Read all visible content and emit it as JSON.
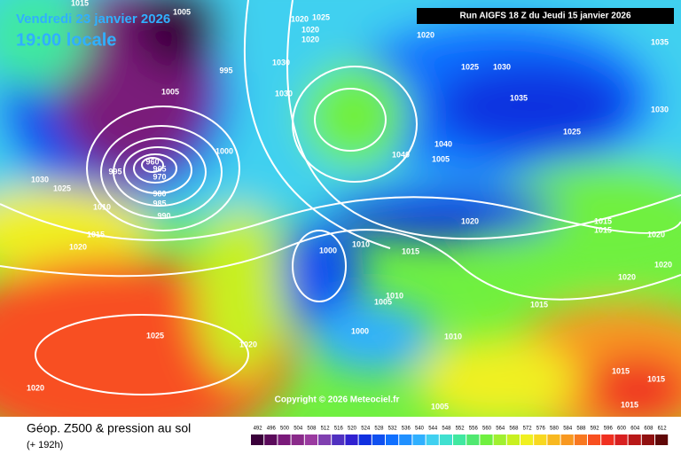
{
  "header": {
    "valid_date": "Vendredi 23 janvier 2026",
    "local_time": "19:00 locale",
    "run": "Run AIGFS 18 Z du Jeudi 15 janvier 2026"
  },
  "isobar_labels": [
    1015,
    1005,
    1025,
    1020,
    1020,
    1020,
    1030,
    995,
    1005,
    1030,
    1020,
    1025,
    1030,
    1035,
    1030,
    1035,
    1025,
    1040,
    1040,
    1000,
    970,
    965,
    960,
    995,
    980,
    985,
    990,
    1010,
    1030,
    1025,
    1015,
    1020,
    1005,
    1020,
    1015,
    1015,
    1020,
    1010,
    1000,
    1015,
    1020,
    1020,
    1010,
    1005,
    1015,
    1000,
    1010,
    1025,
    1020,
    1020,
    1015,
    1015,
    1005,
    1015
  ],
  "copyright": "Copyright © 2026 Meteociel.fr",
  "legend": {
    "title": "Géop. Z500 & pression au sol",
    "lead": "(+ 192h)",
    "scale": [
      492,
      496,
      500,
      504,
      508,
      512,
      516,
      520,
      524,
      528,
      532,
      536,
      540,
      544,
      548,
      552,
      556,
      560,
      564,
      568,
      572,
      576,
      580,
      584,
      588,
      592,
      596,
      600,
      604,
      608,
      612
    ],
    "colors": [
      "#3a003a",
      "#5a0a5a",
      "#7a1a7a",
      "#8a2a8a",
      "#9a3aa0",
      "#8040b0",
      "#5030c0",
      "#3020d0",
      "#1030e0",
      "#1050f0",
      "#1070ff",
      "#2090ff",
      "#30b0ff",
      "#40d0f0",
      "#40e0d0",
      "#40e8a0",
      "#50e870",
      "#70f040",
      "#a0f030",
      "#c8f020",
      "#f0f020",
      "#f8d820",
      "#f8b820",
      "#f89820",
      "#f87820",
      "#f85020",
      "#f03020",
      "#d82020",
      "#b81818",
      "#901010",
      "#600808"
    ]
  }
}
